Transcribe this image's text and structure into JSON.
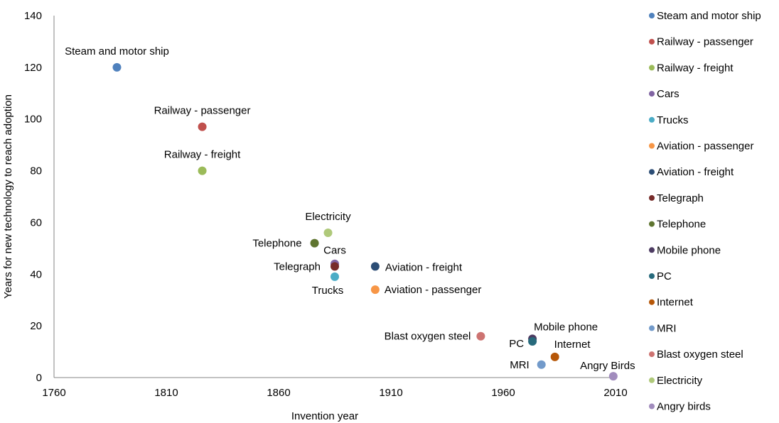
{
  "chart_data": {
    "type": "scatter",
    "title": "",
    "xlabel": "Invention  year",
    "ylabel": "Years for new technology  to reach adoption",
    "xlim": [
      1760,
      2010
    ],
    "ylim": [
      0,
      140
    ],
    "xticks": [
      "1760",
      "1810",
      "1860",
      "1910",
      "1960",
      "2010"
    ],
    "yticks": [
      "0",
      "20",
      "40",
      "60",
      "80",
      "100",
      "120",
      "140"
    ],
    "grid": false,
    "legend_position": "right",
    "series": [
      {
        "name": "Steam and motor ship",
        "label": "Steam and motor ship",
        "color": "#4f81bd",
        "x": 1788,
        "y": 120
      },
      {
        "name": "Railway - passenger",
        "label": "Railway  - passenger",
        "color": "#c0504d",
        "x": 1826,
        "y": 97
      },
      {
        "name": "Railway - freight",
        "label": "Railway  - freight",
        "color": "#9bbb59",
        "x": 1826,
        "y": 80
      },
      {
        "name": "Cars",
        "label": "Cars",
        "color": "#8064a2",
        "x": 1885,
        "y": 44
      },
      {
        "name": "Trucks",
        "label": "Trucks",
        "color": "#4bacc6",
        "x": 1885,
        "y": 39
      },
      {
        "name": "Aviation - passenger",
        "label": "Aviation  - passenger",
        "color": "#f79646",
        "x": 1903,
        "y": 34
      },
      {
        "name": "Aviation - freight",
        "label": "Aviation  - freight",
        "color": "#2c4d75",
        "x": 1903,
        "y": 43
      },
      {
        "name": "Telegraph",
        "label": "Telegraph",
        "color": "#772c2a",
        "x": 1885,
        "y": 43
      },
      {
        "name": "Telephone",
        "label": "Telephone",
        "color": "#5f7530",
        "x": 1876,
        "y": 52
      },
      {
        "name": "Mobile phone",
        "label": "Mobile  phone",
        "color": "#4d3b62",
        "x": 1973,
        "y": 15
      },
      {
        "name": "PC",
        "label": "PC",
        "color": "#276a7c",
        "x": 1973,
        "y": 14
      },
      {
        "name": "Internet",
        "label": "Internet",
        "color": "#b65708",
        "x": 1983,
        "y": 8
      },
      {
        "name": "MRI",
        "label": "MRI",
        "color": "#729aca",
        "x": 1977,
        "y": 5
      },
      {
        "name": "Blast oxygen steel",
        "label": "Blast  oxygen  steel",
        "color": "#cd7371",
        "x": 1950,
        "y": 16
      },
      {
        "name": "Electricity",
        "label": "Electricity",
        "color": "#afc97a",
        "x": 1882,
        "y": 56
      },
      {
        "name": "Angry birds",
        "label": "Angry Birds",
        "color": "#a18cbd",
        "x": 2009,
        "y": 0.5
      }
    ]
  }
}
